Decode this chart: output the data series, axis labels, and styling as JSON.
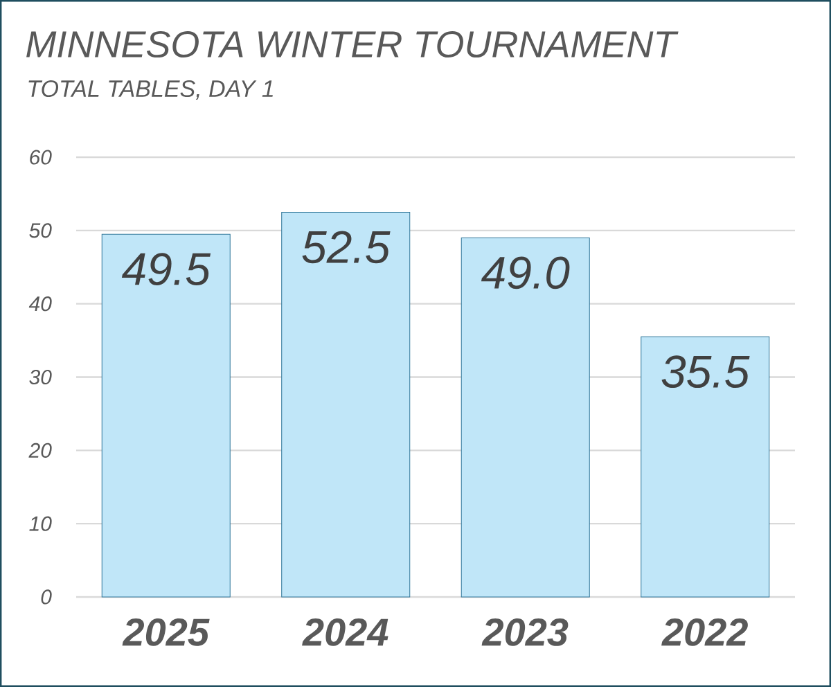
{
  "chart_data": {
    "type": "bar",
    "title": "MINNESOTA WINTER TOURNAMENT",
    "subtitle": "TOTAL TABLES, DAY 1",
    "categories": [
      "2025",
      "2024",
      "2023",
      "2022"
    ],
    "values": [
      49.5,
      52.5,
      49.0,
      35.5
    ],
    "value_labels": [
      "49.5",
      "52.5",
      "49.0",
      "35.5"
    ],
    "color": "#c0e6f8",
    "ylim": [
      0,
      60
    ],
    "yticks": [
      0,
      10,
      20,
      30,
      40,
      50,
      60
    ],
    "grid": "y"
  }
}
